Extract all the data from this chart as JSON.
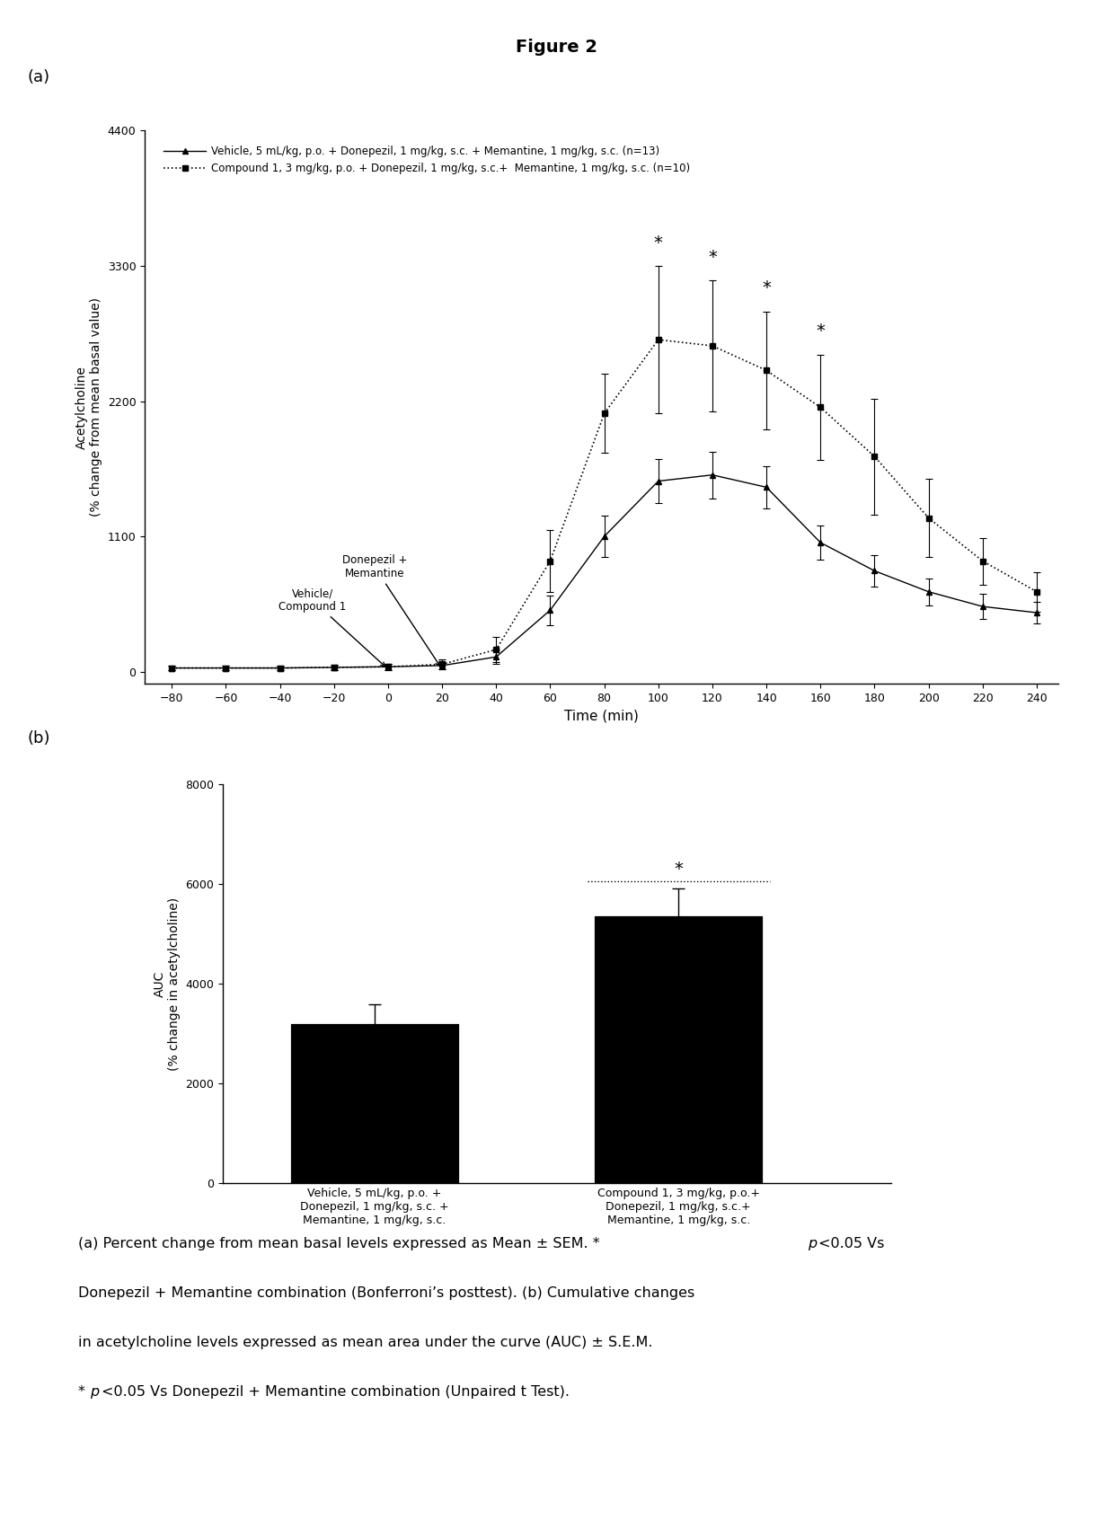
{
  "title": "Figure 2",
  "panel_a_label": "(a)",
  "panel_b_label": "(b)",
  "time_points": [
    -80,
    -60,
    -40,
    -20,
    0,
    20,
    40,
    60,
    80,
    100,
    120,
    140,
    160,
    180,
    200,
    220,
    240
  ],
  "vehicle_mean": [
    30,
    30,
    30,
    35,
    40,
    50,
    120,
    500,
    1100,
    1550,
    1600,
    1500,
    1050,
    820,
    650,
    530,
    480
  ],
  "vehicle_sem": [
    20,
    20,
    20,
    20,
    25,
    30,
    60,
    120,
    170,
    180,
    190,
    170,
    140,
    130,
    110,
    100,
    90
  ],
  "compound1_mean": [
    30,
    30,
    30,
    35,
    40,
    60,
    180,
    900,
    2100,
    2700,
    2650,
    2450,
    2150,
    1750,
    1250,
    900,
    650
  ],
  "compound1_sem": [
    20,
    20,
    20,
    20,
    25,
    40,
    100,
    250,
    320,
    600,
    530,
    480,
    430,
    470,
    320,
    190,
    160
  ],
  "significant_timepoints": [
    100,
    120,
    140,
    160
  ],
  "ylabel_a": "Acetylcholine\n(% change from mean basal value)",
  "xlabel_a": "Time (min)",
  "ylim_a": [
    -100,
    4400
  ],
  "yticks_a": [
    0,
    1100,
    2200,
    3300,
    4400
  ],
  "xticks_a": [
    -80,
    -60,
    -40,
    -20,
    0,
    20,
    40,
    60,
    80,
    100,
    120,
    140,
    160,
    180,
    200,
    220,
    240
  ],
  "legend_vehicle": "Vehicle, 5 mL/kg, ",
  "legend_vehicle_italic": "p.o.",
  "legend_vehicle_rest": " + Donepezil, 1 mg/kg, ",
  "legend_vehicle_italic2": "s.c.",
  "legend_vehicle_rest2": " + Memantine, 1 mg/kg, ",
  "legend_vehicle_italic3": "s.c.",
  "legend_vehicle_rest3": " (n=13)",
  "legend_compound1": "Compound 1, 3 mg/kg, ",
  "legend_compound1_italic": "p.o.",
  "legend_compound1_rest": " + Donepezil, 1 mg/kg, ",
  "legend_compound1_italic2": "s.c.",
  "legend_compound1_rest2": "+  Memantine, 1 mg/kg, ",
  "legend_compound1_italic3": "s.c.",
  "legend_compound1_rest3": " (n=10)",
  "bar_vehicle_mean": 3200,
  "bar_vehicle_sem": 380,
  "bar_compound1_mean": 5350,
  "bar_compound1_sem": 550,
  "ylabel_b": "AUC\n(% change in acetylcholine)",
  "ylim_b": [
    0,
    8000
  ],
  "yticks_b": [
    0,
    2000,
    4000,
    6000,
    8000
  ],
  "bar_label_vehicle": "Vehicle, 5 mL/kg, p.o. +\nDonepezil, 1 mg/kg, s.c. +\nMemantine, 1 mg/kg, s.c.",
  "bar_label_compound1": "Compound 1, 3 mg/kg, p.o.+\nDonepezil, 1 mg/kg, s.c.+\nMemantine, 1 mg/kg, s.c.",
  "caption_line1": "(a) Percent change from mean basal levels expressed as Mean ± SEM. *",
  "caption_line1b": "p",
  "caption_line1c": "<0.05 Vs",
  "caption_line2": "Donepezil + Memantine combination (Bonferroni’s posttest). (b) Cumulative changes",
  "caption_line3": "in acetylcholine levels expressed as mean area under the curve (AUC) ± S.E.M.",
  "caption_line4": "*",
  "caption_line4b": "p",
  "caption_line4c": "<0.05 Vs Donepezil + Memantine combination (Unpaired t Test).",
  "background_color": "#ffffff"
}
